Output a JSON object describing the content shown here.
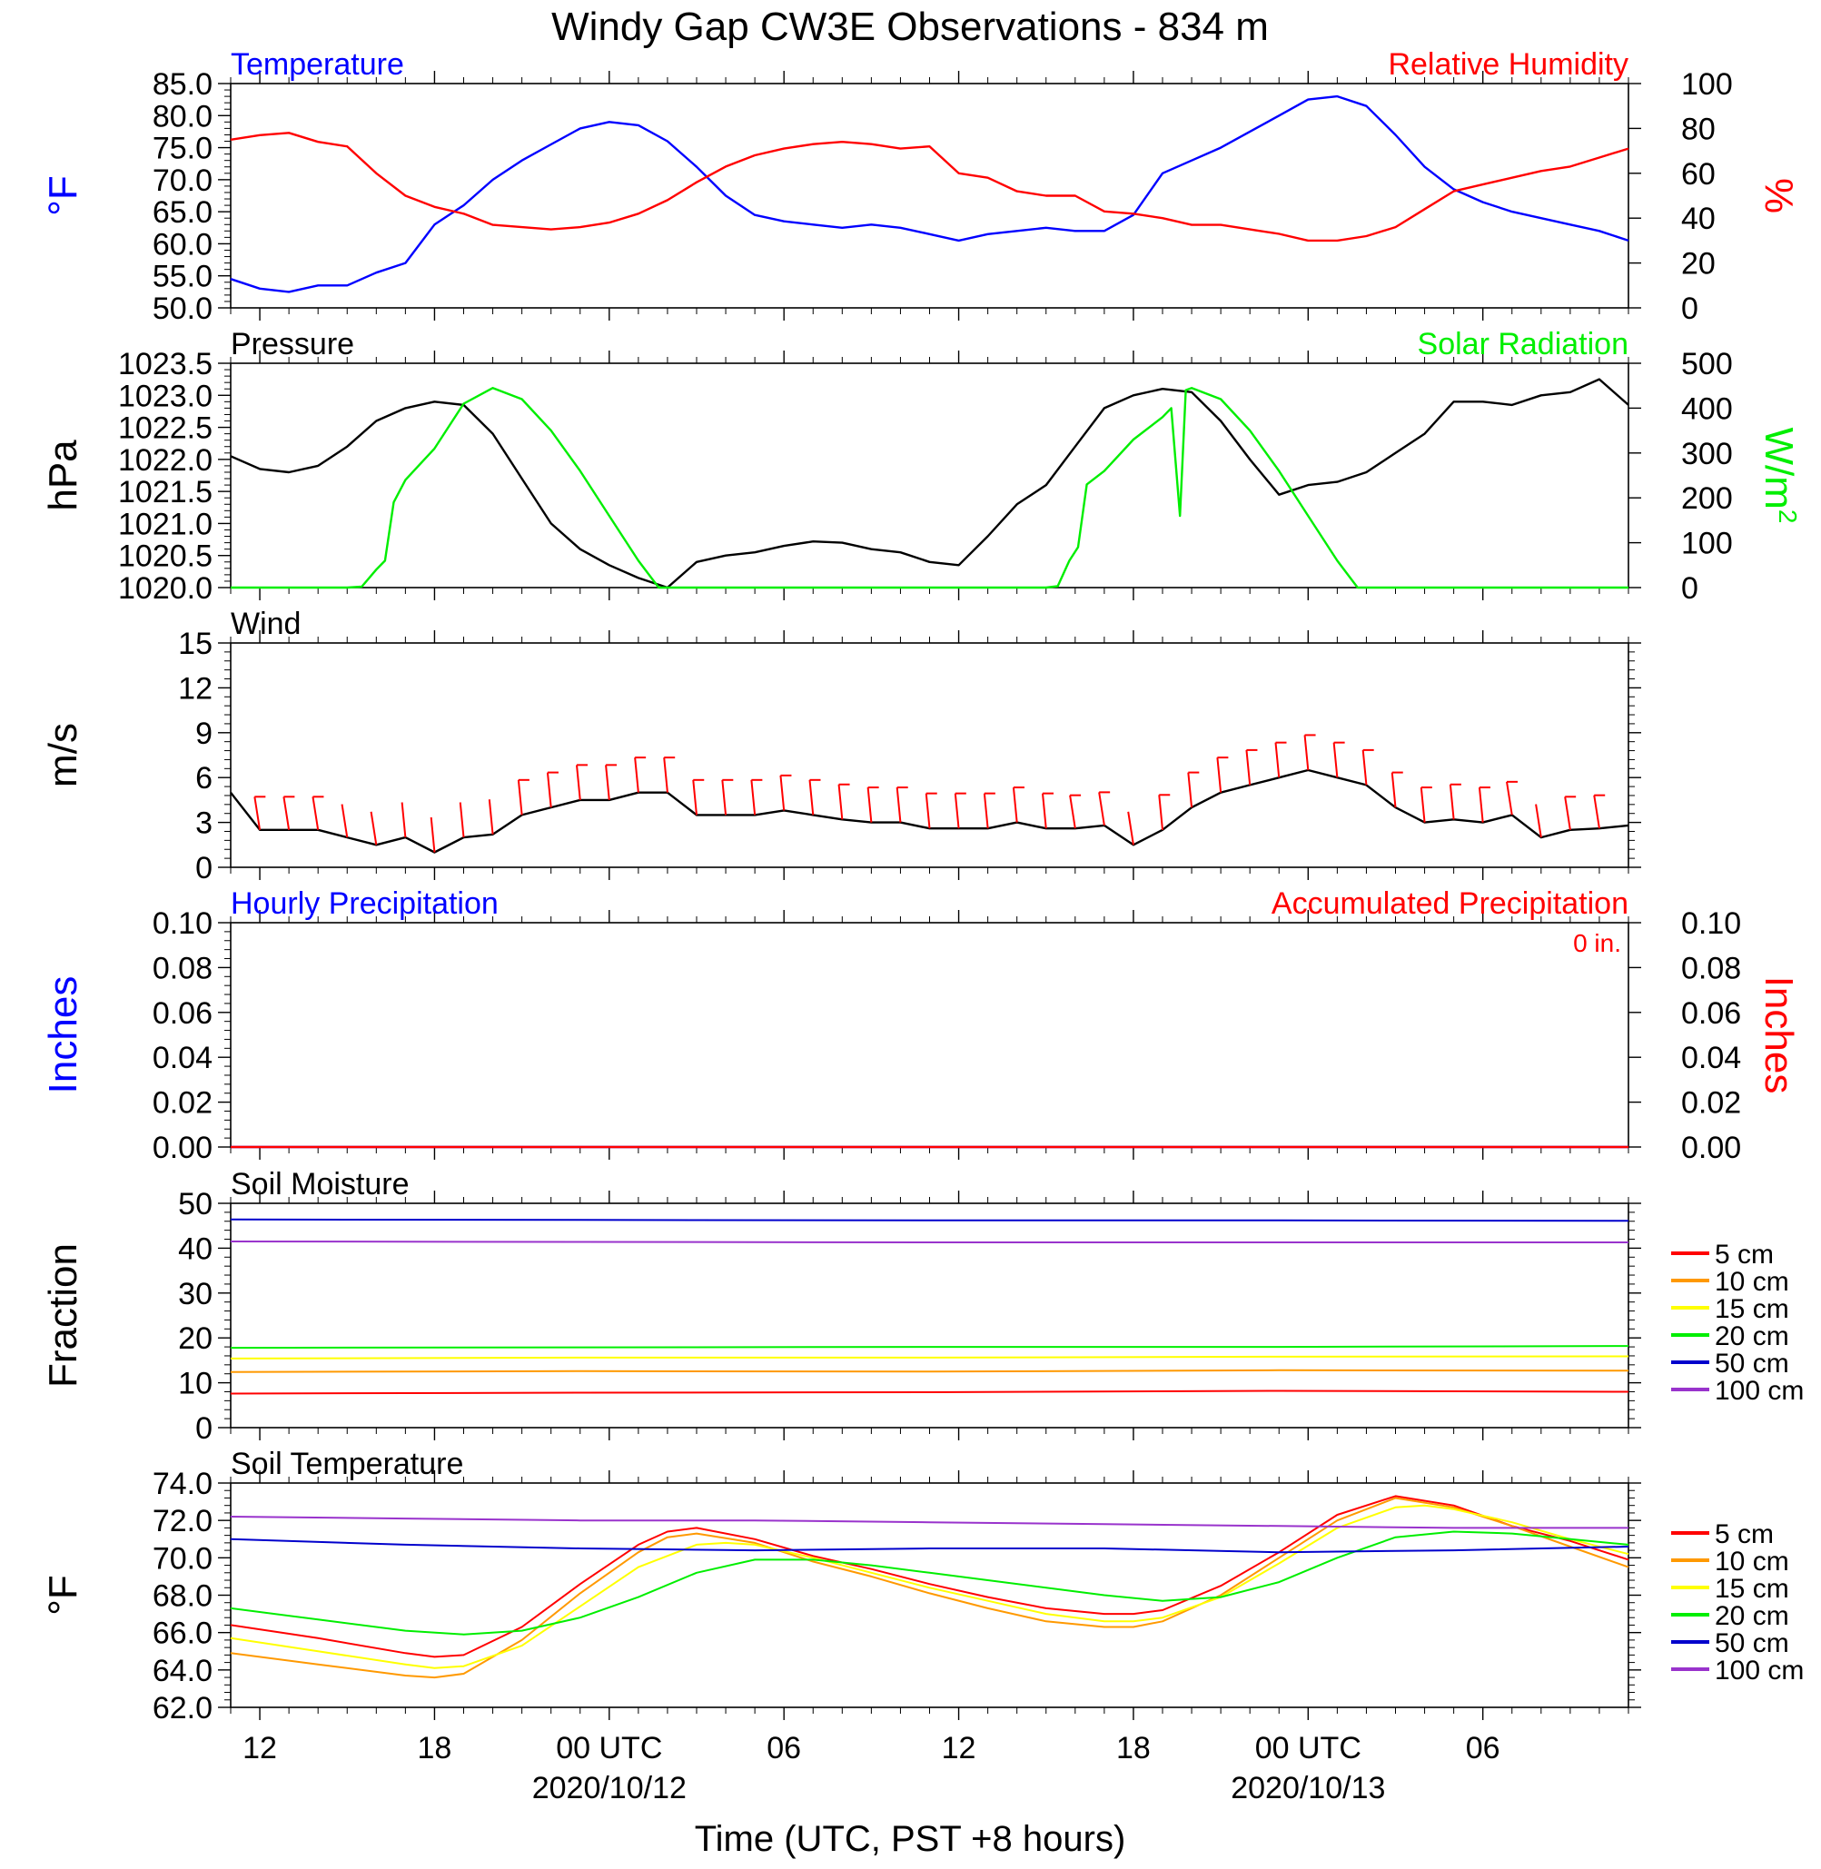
{
  "title": "Windy Gap CW3E Observations - 834 m",
  "time_axis": {
    "title": "Time (UTC, PST +8 hours)",
    "tick_labels": [
      "12",
      "18",
      "00 UTC",
      "06",
      "12",
      "18",
      "00 UTC",
      "06"
    ],
    "tick_hours": [
      1,
      7,
      13,
      19,
      25,
      31,
      37,
      43
    ],
    "date_labels": [
      "2020/10/12",
      "2020/10/13"
    ],
    "date_hours": [
      13,
      37
    ],
    "start": "2020/10/11 11:00 UTC",
    "range_hours": [
      0,
      48
    ]
  },
  "chart_data": [
    {
      "type": "line",
      "panel": "temperature-rh",
      "left_title": "Temperature",
      "right_title": "Relative Humidity",
      "ylabel_left": "°F",
      "ylabel_right": "%",
      "ylim_left": [
        50,
        85
      ],
      "ylim_right": [
        0,
        100
      ],
      "yticks_left": [
        "50.0",
        "55.0",
        "60.0",
        "65.0",
        "70.0",
        "75.0",
        "80.0",
        "85.0"
      ],
      "yticks_right": [
        "0",
        "20",
        "40",
        "60",
        "80",
        "100"
      ],
      "colors": {
        "Temperature": "#0000ff",
        "Relative Humidity": "#ff0000"
      },
      "series": [
        {
          "name": "Temperature",
          "axis": "left",
          "x": [
            0,
            1,
            2,
            3,
            4,
            5,
            6,
            7,
            8,
            9,
            10,
            11,
            12,
            13,
            14,
            15,
            16,
            17,
            18,
            19,
            20,
            21,
            22,
            23,
            24,
            25,
            26,
            27,
            28,
            29,
            30,
            31,
            32,
            33,
            34,
            35,
            36,
            37,
            38,
            39,
            40,
            41,
            42,
            43,
            44,
            45,
            46,
            47,
            48
          ],
          "values": [
            54.5,
            53,
            52.5,
            53.5,
            53.5,
            55.5,
            57,
            63,
            66,
            70,
            73,
            75.5,
            78,
            79,
            78.5,
            76,
            72,
            67.5,
            64.5,
            63.5,
            63,
            62.5,
            63,
            62.5,
            61.5,
            60.5,
            61.5,
            62,
            62.5,
            62,
            62,
            64.5,
            71,
            73,
            75,
            77.5,
            80,
            82.5,
            83,
            81.5,
            77,
            72,
            68.5,
            66.5,
            65,
            64,
            63,
            62,
            60.5
          ]
        },
        {
          "name": "Relative Humidity",
          "axis": "right",
          "x": [
            0,
            1,
            2,
            3,
            4,
            5,
            6,
            7,
            8,
            9,
            10,
            11,
            12,
            13,
            14,
            15,
            16,
            17,
            18,
            19,
            20,
            21,
            22,
            23,
            24,
            25,
            26,
            27,
            28,
            29,
            30,
            31,
            32,
            33,
            34,
            35,
            36,
            37,
            38,
            39,
            40,
            41,
            42,
            43,
            44,
            45,
            46,
            47,
            48
          ],
          "values": [
            75,
            77,
            78,
            74,
            72,
            60,
            50,
            45,
            42,
            37,
            36,
            35,
            36,
            38,
            42,
            48,
            56,
            63,
            68,
            71,
            73,
            74,
            73,
            71,
            72,
            60,
            58,
            52,
            50,
            50,
            43,
            42,
            40,
            37,
            37,
            35,
            33,
            30,
            30,
            32,
            36,
            44,
            52,
            55,
            58,
            61,
            63,
            67,
            71
          ]
        }
      ]
    },
    {
      "type": "line",
      "panel": "pressure-solar",
      "left_title": "Pressure",
      "right_title": "Solar Radiation",
      "ylabel_left": "hPa",
      "ylabel_right": "W/m",
      "ylabel_right_sup": "2",
      "ylim_left": [
        1020.0,
        1023.5
      ],
      "ylim_right": [
        0,
        500
      ],
      "yticks_left": [
        "1020.0",
        "1020.5",
        "1021.0",
        "1021.5",
        "1022.0",
        "1022.5",
        "1023.0",
        "1023.5"
      ],
      "yticks_right": [
        "0",
        "100",
        "200",
        "300",
        "400",
        "500"
      ],
      "colors": {
        "Pressure": "#000000",
        "Solar Radiation": "#00ee00"
      },
      "series": [
        {
          "name": "Pressure",
          "axis": "left",
          "x": [
            0,
            1,
            2,
            3,
            4,
            5,
            6,
            7,
            8,
            9,
            10,
            11,
            12,
            13,
            14,
            15,
            16,
            17,
            18,
            19,
            20,
            21,
            22,
            23,
            24,
            25,
            26,
            27,
            28,
            29,
            30,
            31,
            32,
            33,
            34,
            35,
            36,
            37,
            38,
            39,
            40,
            41,
            42,
            43,
            44,
            45,
            46,
            47,
            48
          ],
          "values": [
            1022.05,
            1021.85,
            1021.8,
            1021.9,
            1022.2,
            1022.6,
            1022.8,
            1022.9,
            1022.85,
            1022.4,
            1021.7,
            1021.0,
            1020.6,
            1020.35,
            1020.15,
            1020.0,
            1020.4,
            1020.5,
            1020.55,
            1020.65,
            1020.72,
            1020.7,
            1020.6,
            1020.55,
            1020.4,
            1020.35,
            1020.8,
            1021.3,
            1021.6,
            1022.2,
            1022.8,
            1023.0,
            1023.1,
            1023.05,
            1022.6,
            1022.0,
            1021.45,
            1021.6,
            1021.65,
            1021.8,
            1022.1,
            1022.4,
            1022.9,
            1022.9,
            1022.85,
            1023.0,
            1023.05,
            1023.25,
            1022.85
          ]
        },
        {
          "name": "Solar Radiation",
          "axis": "right",
          "x": [
            0,
            1,
            2,
            3,
            4,
            4.5,
            5,
            5.3,
            5.6,
            6,
            7,
            8,
            9,
            10,
            11,
            12,
            13,
            14,
            14.7,
            15,
            16,
            28,
            28.4,
            28.8,
            29.1,
            29.4,
            30,
            31,
            32,
            32.3,
            32.6,
            32.8,
            33,
            34,
            35,
            36,
            37,
            38,
            38.7,
            39,
            40,
            48
          ],
          "values": [
            0,
            0,
            0,
            0,
            0,
            2,
            40,
            60,
            190,
            240,
            310,
            410,
            445,
            420,
            350,
            260,
            160,
            60,
            0,
            0,
            0,
            0,
            3,
            60,
            90,
            230,
            260,
            330,
            380,
            400,
            160,
            440,
            445,
            420,
            350,
            260,
            160,
            60,
            0,
            0,
            0,
            0
          ]
        }
      ]
    },
    {
      "type": "line",
      "panel": "wind",
      "left_title": "Wind",
      "ylabel_left": "m/s",
      "ylim_left": [
        0,
        15
      ],
      "yticks_left": [
        "0",
        "3",
        "6",
        "9",
        "12",
        "15"
      ],
      "colors": {
        "speed": "#000000",
        "barbs": "#ff0000"
      },
      "series": [
        {
          "axis": "left",
          "x": [
            0,
            1,
            2,
            3,
            4,
            5,
            6,
            7,
            8,
            9,
            10,
            11,
            12,
            13,
            14,
            15,
            16,
            17,
            18,
            19,
            20,
            21,
            22,
            23,
            24,
            25,
            26,
            27,
            28,
            29,
            30,
            31,
            32,
            33,
            34,
            35,
            36,
            37,
            38,
            39,
            40,
            41,
            42,
            43,
            44,
            45,
            46,
            47,
            48
          ],
          "values": [
            5,
            2.5,
            2.5,
            2.5,
            2.0,
            1.5,
            2.0,
            1.0,
            2.0,
            2.2,
            3.5,
            4.0,
            4.5,
            4.5,
            5.0,
            5.0,
            3.5,
            3.5,
            3.5,
            3.8,
            3.5,
            3.2,
            3.0,
            3.0,
            2.6,
            2.6,
            2.6,
            3.0,
            2.6,
            2.6,
            2.8,
            1.5,
            2.5,
            4.0,
            5.0,
            5.5,
            6.0,
            6.5,
            6.0,
            5.5,
            4.0,
            3.0,
            3.2,
            3.0,
            3.5,
            2.0,
            2.5,
            2.6,
            2.8
          ]
        }
      ]
    },
    {
      "type": "line",
      "panel": "precipitation",
      "left_title": "Hourly Precipitation",
      "right_title": "Accumulated Precipitation",
      "annotation": "0 in.",
      "ylabel_left": "Inches",
      "ylabel_right": "Inches",
      "ylim_left": [
        0,
        0.1
      ],
      "ylim_right": [
        0,
        0.1
      ],
      "yticks_left": [
        "0.00",
        "0.02",
        "0.04",
        "0.06",
        "0.08",
        "0.10"
      ],
      "yticks_right": [
        "0.00",
        "0.02",
        "0.04",
        "0.06",
        "0.08",
        "0.10"
      ],
      "colors": {
        "Hourly Precipitation": "#0000ff",
        "Accumulated Precipitation": "#ff0000"
      },
      "series": [
        {
          "name": "Hourly Precipitation",
          "axis": "left",
          "x": [
            0,
            48
          ],
          "values": [
            0,
            0
          ]
        },
        {
          "name": "Accumulated Precipitation",
          "axis": "right",
          "x": [
            0,
            48
          ],
          "values": [
            0,
            0
          ]
        }
      ]
    },
    {
      "type": "line",
      "panel": "soil-moisture",
      "left_title": "Soil Moisture",
      "ylabel_left": "Fraction",
      "ylim_left": [
        0,
        50
      ],
      "yticks_left": [
        "0",
        "10",
        "20",
        "30",
        "40",
        "50"
      ],
      "legend": "right",
      "series": [
        {
          "name": "5 cm",
          "color": "#ff0000",
          "x": [
            0,
            12,
            24,
            36,
            48
          ],
          "values": [
            7.6,
            7.8,
            7.9,
            8.2,
            8.0
          ]
        },
        {
          "name": "10 cm",
          "color": "#ff9900",
          "x": [
            0,
            12,
            24,
            36,
            48
          ],
          "values": [
            12.4,
            12.6,
            12.5,
            12.8,
            12.7
          ]
        },
        {
          "name": "15 cm",
          "color": "#ffff00",
          "x": [
            0,
            12,
            24,
            36,
            48
          ],
          "values": [
            15.4,
            15.6,
            15.6,
            15.8,
            15.9
          ]
        },
        {
          "name": "20 cm",
          "color": "#00ee00",
          "x": [
            0,
            12,
            24,
            36,
            48
          ],
          "values": [
            17.8,
            17.9,
            18.0,
            18.0,
            18.2
          ]
        },
        {
          "name": "50 cm",
          "color": "#0000cc",
          "x": [
            0,
            12,
            24,
            36,
            48
          ],
          "values": [
            46.4,
            46.3,
            46.2,
            46.2,
            46.1
          ]
        },
        {
          "name": "100 cm",
          "color": "#9933cc",
          "x": [
            0,
            12,
            24,
            36,
            48
          ],
          "values": [
            41.5,
            41.4,
            41.3,
            41.3,
            41.3
          ]
        }
      ]
    },
    {
      "type": "line",
      "panel": "soil-temperature",
      "left_title": "Soil Temperature",
      "ylabel_left": "°F",
      "ylim_left": [
        62,
        74
      ],
      "yticks_left": [
        "62.0",
        "64.0",
        "66.0",
        "68.0",
        "70.0",
        "72.0",
        "74.0"
      ],
      "legend": "right",
      "series": [
        {
          "name": "5 cm",
          "color": "#ff0000",
          "x": [
            0,
            3,
            6,
            7,
            8,
            10,
            12,
            14,
            15,
            16,
            18,
            20,
            22,
            24,
            26,
            28,
            30,
            31,
            32,
            34,
            36,
            38,
            40,
            42,
            44,
            46,
            48
          ],
          "values": [
            66.4,
            65.7,
            64.9,
            64.7,
            64.8,
            66.3,
            68.6,
            70.7,
            71.4,
            71.6,
            71.0,
            70.1,
            69.4,
            68.6,
            67.9,
            67.3,
            67.0,
            67.0,
            67.2,
            68.5,
            70.3,
            72.3,
            73.3,
            72.8,
            71.7,
            70.9,
            69.9
          ]
        },
        {
          "name": "10 cm",
          "color": "#ff9900",
          "x": [
            0,
            3,
            6,
            7,
            8,
            10,
            12,
            14,
            15,
            16,
            18,
            20,
            22,
            24,
            26,
            28,
            30,
            31,
            32,
            34,
            36,
            38,
            40,
            42,
            44,
            46,
            48
          ],
          "values": [
            64.9,
            64.3,
            63.7,
            63.6,
            63.8,
            65.6,
            68.1,
            70.3,
            71.1,
            71.3,
            70.8,
            69.8,
            69.0,
            68.1,
            67.3,
            66.6,
            66.3,
            66.3,
            66.6,
            68.0,
            70.0,
            72.0,
            73.2,
            72.7,
            71.7,
            70.6,
            69.5
          ]
        },
        {
          "name": "15 cm",
          "color": "#ffff00",
          "x": [
            0,
            3,
            6,
            7,
            8,
            10,
            12,
            14,
            16,
            17,
            18,
            20,
            22,
            24,
            26,
            28,
            30,
            31,
            32,
            34,
            36,
            38,
            40,
            41,
            42,
            44,
            46,
            48
          ],
          "values": [
            65.7,
            65.0,
            64.3,
            64.1,
            64.2,
            65.3,
            67.4,
            69.5,
            70.7,
            70.8,
            70.7,
            70.0,
            69.2,
            68.4,
            67.7,
            67.0,
            66.6,
            66.6,
            66.8,
            67.9,
            69.7,
            71.6,
            72.7,
            72.8,
            72.6,
            71.9,
            71.0,
            70.2
          ]
        },
        {
          "name": "20 cm",
          "color": "#00ee00",
          "x": [
            0,
            3,
            6,
            8,
            10,
            12,
            14,
            16,
            18,
            20,
            22,
            24,
            26,
            28,
            30,
            32,
            34,
            36,
            38,
            40,
            42,
            44,
            46,
            48
          ],
          "values": [
            67.3,
            66.7,
            66.1,
            65.9,
            66.1,
            66.8,
            67.9,
            69.2,
            69.9,
            69.9,
            69.6,
            69.2,
            68.8,
            68.4,
            68.0,
            67.7,
            67.9,
            68.7,
            70.0,
            71.1,
            71.4,
            71.3,
            71.0,
            70.7
          ]
        },
        {
          "name": "50 cm",
          "color": "#0000cc",
          "x": [
            0,
            6,
            12,
            18,
            24,
            30,
            36,
            42,
            48
          ],
          "values": [
            71.0,
            70.7,
            70.5,
            70.4,
            70.5,
            70.5,
            70.3,
            70.4,
            70.6
          ]
        },
        {
          "name": "100 cm",
          "color": "#9933cc",
          "x": [
            0,
            6,
            12,
            18,
            24,
            30,
            36,
            42,
            48
          ],
          "values": [
            72.2,
            72.1,
            72.0,
            72.0,
            71.9,
            71.8,
            71.7,
            71.6,
            71.6
          ]
        }
      ]
    }
  ]
}
